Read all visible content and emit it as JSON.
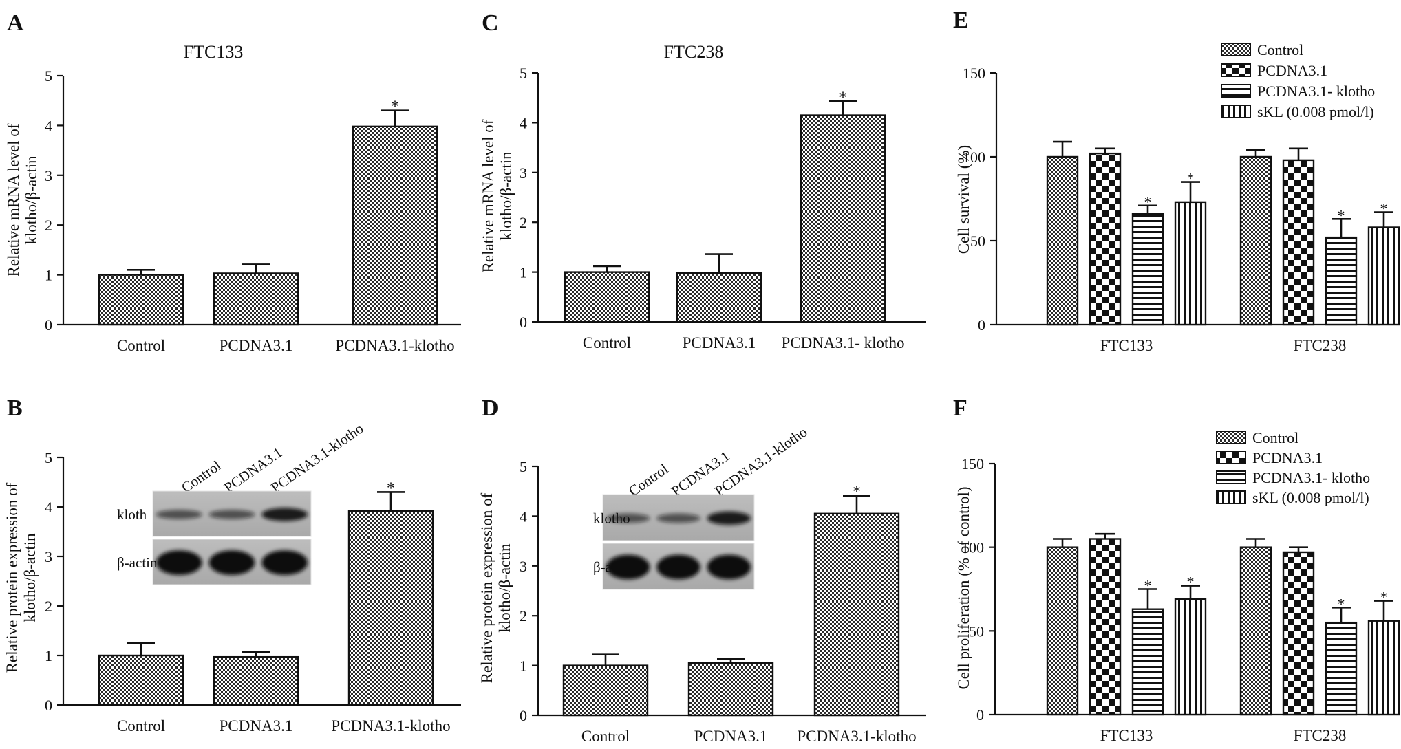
{
  "chart_data": [
    {
      "panel": "A",
      "type": "bar",
      "title": "FTC133",
      "ylabel": [
        "Relative mRNA level of",
        "klotho/β-actin"
      ],
      "xlabel": "",
      "categories": [
        "Control",
        "PCDNA3.1",
        "PCDNA3.1-klotho"
      ],
      "values": [
        1.0,
        1.03,
        3.98
      ],
      "errors": [
        0.1,
        0.18,
        0.32
      ],
      "significance": [
        "",
        "",
        "*"
      ],
      "ylim": [
        0,
        5
      ],
      "yticks": [
        0,
        1,
        2,
        3,
        4,
        5
      ],
      "fill": "checker-fine"
    },
    {
      "panel": "B",
      "type": "bar",
      "title": "",
      "ylabel": [
        "Relative protein expression of",
        "klotho/β-actin"
      ],
      "xlabel": "",
      "categories": [
        "Control",
        "PCDNA3.1",
        "PCDNA3.1-klotho"
      ],
      "values": [
        1.0,
        0.97,
        3.92
      ],
      "errors": [
        0.25,
        0.1,
        0.38
      ],
      "significance": [
        "",
        "",
        "*"
      ],
      "ylim": [
        0,
        5
      ],
      "yticks": [
        0,
        1,
        2,
        3,
        4,
        5
      ],
      "fill": "checker-fine",
      "blot": {
        "lanes": [
          "Control",
          "PCDNA3.1",
          "PCDNA3.1-klotho"
        ],
        "rows": [
          "kloth",
          "β-actin"
        ]
      }
    },
    {
      "panel": "C",
      "type": "bar",
      "title": "FTC238",
      "ylabel": [
        "Relative mRNA level of",
        "klotho/β-actin"
      ],
      "xlabel": "",
      "categories": [
        "Control",
        "PCDNA3.1",
        "PCDNA3.1- klotho"
      ],
      "values": [
        1.0,
        0.98,
        4.15
      ],
      "errors": [
        0.12,
        0.38,
        0.28
      ],
      "significance": [
        "",
        "",
        "*"
      ],
      "ylim": [
        0,
        5
      ],
      "yticks": [
        0,
        1,
        2,
        3,
        4,
        5
      ],
      "fill": "checker-fine"
    },
    {
      "panel": "D",
      "type": "bar",
      "title": "",
      "ylabel": [
        "Relative protein expression of",
        "klotho/β-actin"
      ],
      "xlabel": "",
      "categories": [
        "Control",
        "PCDNA3.1",
        "PCDNA3.1-klotho"
      ],
      "values": [
        1.0,
        1.05,
        4.05
      ],
      "errors": [
        0.22,
        0.08,
        0.36
      ],
      "significance": [
        "",
        "",
        "*"
      ],
      "ylim": [
        0,
        5
      ],
      "yticks": [
        0,
        1,
        2,
        3,
        4,
        5
      ],
      "fill": "checker-fine",
      "blot": {
        "lanes": [
          "Control",
          "PCDNA3.1",
          "PCDNA3.1-klotho"
        ],
        "rows": [
          "klotho",
          "β-actin"
        ]
      }
    },
    {
      "panel": "E",
      "type": "bar",
      "title": "",
      "ylabel": [
        "Cell survival (%)"
      ],
      "xlabel": "",
      "categories": [
        "FTC133",
        "FTC238"
      ],
      "series": [
        {
          "name": "Control",
          "values": [
            100,
            100
          ],
          "errors": [
            9,
            4
          ],
          "significance": [
            "",
            ""
          ],
          "fill": "checker-fine"
        },
        {
          "name": "PCDNA3.1",
          "values": [
            102,
            98
          ],
          "errors": [
            3,
            7
          ],
          "significance": [
            "",
            ""
          ],
          "fill": "checker-coarse"
        },
        {
          "name": "PCDNA3.1- klotho",
          "values": [
            66,
            52
          ],
          "errors": [
            5,
            11
          ],
          "significance": [
            "*",
            "*"
          ],
          "fill": "horizontal"
        },
        {
          "name": "sKL (0.008 pmol/l)",
          "values": [
            73,
            58
          ],
          "errors": [
            12,
            9
          ],
          "significance": [
            "*",
            "*"
          ],
          "fill": "vertical"
        }
      ],
      "ylim": [
        0,
        150
      ],
      "yticks": [
        0,
        50,
        100,
        150
      ],
      "legend": "top-right"
    },
    {
      "panel": "F",
      "type": "bar",
      "title": "",
      "ylabel": [
        "Cell proliferation (% of control)"
      ],
      "xlabel": "",
      "categories": [
        "FTC133",
        "FTC238"
      ],
      "series": [
        {
          "name": "Control",
          "values": [
            100,
            100
          ],
          "errors": [
            5,
            5
          ],
          "significance": [
            "",
            ""
          ],
          "fill": "checker-fine"
        },
        {
          "name": "PCDNA3.1",
          "values": [
            105,
            97
          ],
          "errors": [
            3,
            3
          ],
          "significance": [
            "",
            ""
          ],
          "fill": "checker-coarse"
        },
        {
          "name": "PCDNA3.1- klotho",
          "values": [
            63,
            55
          ],
          "errors": [
            12,
            9
          ],
          "significance": [
            "*",
            "*"
          ],
          "fill": "horizontal"
        },
        {
          "name": "sKL (0.008 pmol/l)",
          "values": [
            69,
            56
          ],
          "errors": [
            8,
            12
          ],
          "significance": [
            "*",
            "*"
          ],
          "fill": "vertical"
        }
      ],
      "ylim": [
        0,
        150
      ],
      "yticks": [
        0,
        50,
        100,
        150
      ],
      "legend": "top-right"
    }
  ]
}
